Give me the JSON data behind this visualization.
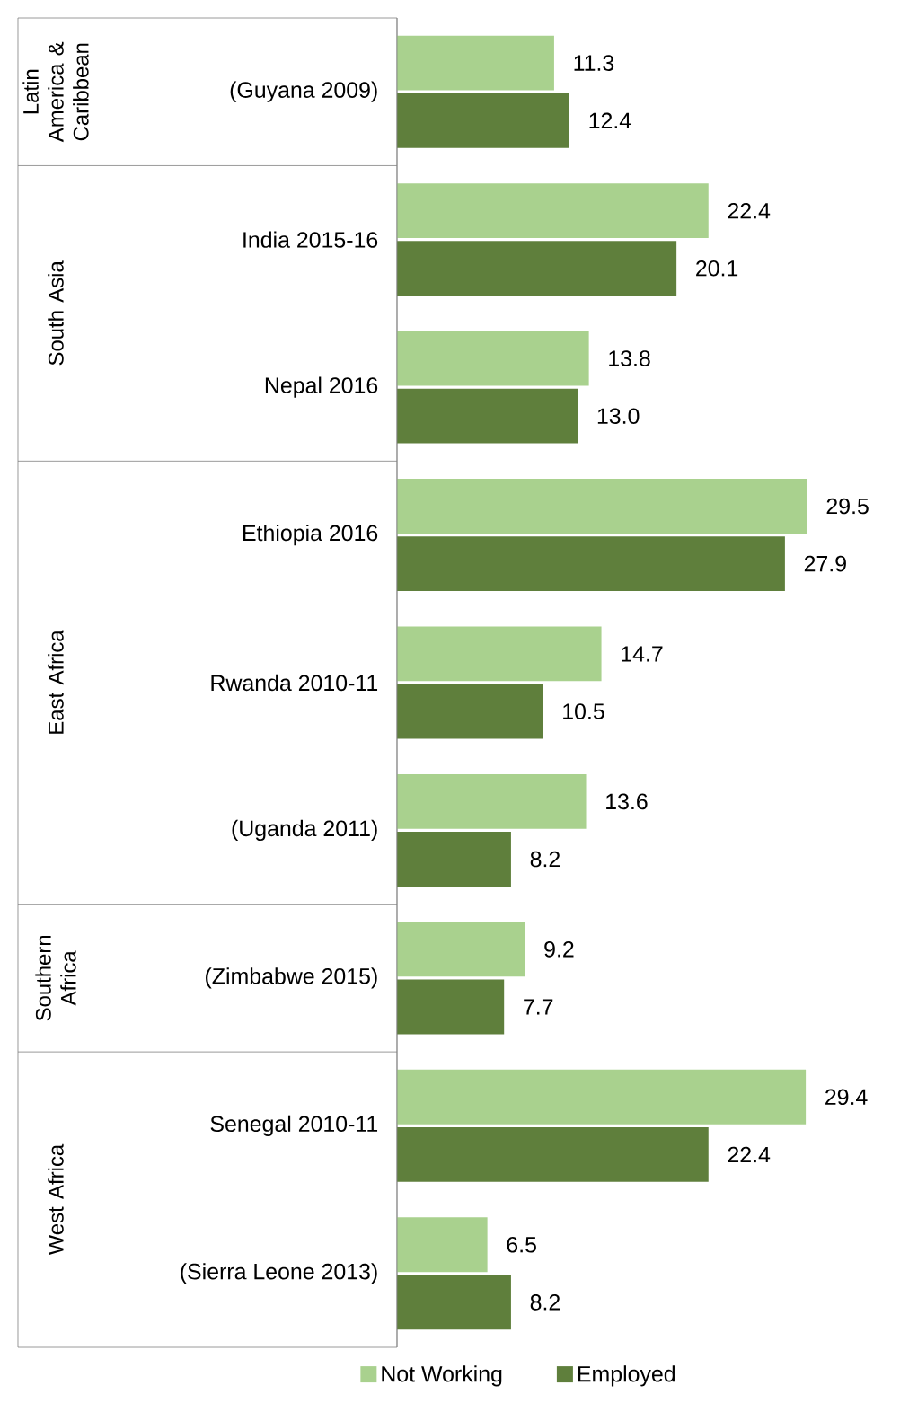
{
  "chart_data": {
    "type": "bar",
    "orientation": "horizontal",
    "categories": [
      "(Guyana 2009)",
      "India 2015-16",
      "Nepal 2016",
      "Ethiopia 2016",
      "Rwanda 2010-11",
      "(Uganda 2011)",
      "(Zimbabwe 2015)",
      "Senegal 2010-11",
      "(Sierra Leone 2013)"
    ],
    "series": [
      {
        "name": "Not Working",
        "color": "#a9d18e",
        "values": [
          11.3,
          22.4,
          13.8,
          29.5,
          14.7,
          13.6,
          9.2,
          29.4,
          6.5
        ],
        "value_labels": [
          "11.3",
          "22.4",
          "13.8",
          "29.5",
          "14.7",
          "13.6",
          "9.2",
          "29.4",
          "6.5"
        ]
      },
      {
        "name": "Employed",
        "color": "#5f7f3c",
        "values": [
          12.4,
          20.1,
          13.0,
          27.9,
          10.5,
          8.2,
          7.7,
          22.4,
          8.2
        ],
        "value_labels": [
          "12.4",
          "20.1",
          "13.0",
          "27.9",
          "10.5",
          "8.2",
          "7.7",
          "22.4",
          "8.2"
        ]
      }
    ],
    "annotations": [
      "Latin America & Caribbean",
      "South Asia",
      "East Africa",
      "Southern Africa",
      "West Africa"
    ],
    "legend": "bottom"
  }
}
